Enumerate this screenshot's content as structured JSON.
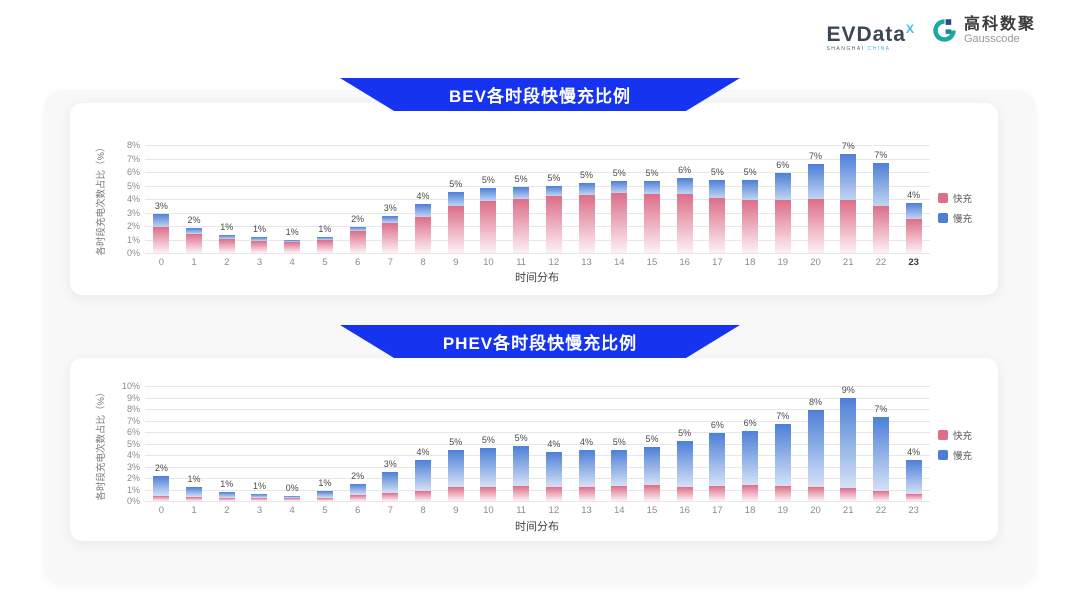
{
  "header": {
    "evdata": {
      "wordmark": "EVData",
      "sup": "X",
      "tagline_dark": "SHANGHAI",
      "tagline_blue": "CHINA"
    },
    "gausscode": {
      "cn": "高科数聚",
      "en": "Gausscode",
      "icon_color": "#1ba8a2",
      "icon_accent": "#2b4a8b"
    }
  },
  "colors": {
    "banner_blue": "#1634f0",
    "fast_pink": "#dc6e89",
    "slow_blue": "#4c80d6"
  },
  "chart_data": [
    {
      "type": "bar",
      "stacked": true,
      "title": "BEV各时段快慢充比例",
      "xlabel": "时间分布",
      "ylabel": "各时段充电次数占比（%）",
      "ylim": [
        0,
        8
      ],
      "ytick_step": 1,
      "ytick_suffix": "%",
      "grid": true,
      "legend_position": "right",
      "highlighted_xtick": "23",
      "categories": [
        "0",
        "1",
        "2",
        "3",
        "4",
        "5",
        "6",
        "7",
        "8",
        "9",
        "10",
        "11",
        "12",
        "13",
        "14",
        "15",
        "16",
        "17",
        "18",
        "19",
        "20",
        "21",
        "22",
        "23"
      ],
      "series": [
        {
          "name": "快充",
          "color": "#dc6e89",
          "fade": "#fdf1f5",
          "values": [
            1.9,
            1.4,
            1.0,
            0.9,
            0.85,
            0.95,
            1.6,
            2.2,
            2.7,
            3.5,
            3.85,
            4.0,
            4.2,
            4.3,
            4.45,
            4.4,
            4.4,
            4.05,
            3.95,
            3.95,
            4.0,
            3.9,
            3.5,
            2.5
          ]
        },
        {
          "name": "慢充",
          "color": "#4c80d6",
          "fade": "#c2d4f2",
          "values": [
            1.0,
            0.45,
            0.3,
            0.25,
            0.1,
            0.2,
            0.3,
            0.55,
            0.9,
            1.0,
            0.95,
            0.9,
            0.8,
            0.9,
            0.85,
            0.9,
            1.15,
            1.35,
            1.45,
            2.0,
            2.6,
            3.4,
            3.2,
            1.2
          ]
        }
      ],
      "total_labels": [
        "3%",
        "2%",
        "1%",
        "1%",
        "1%",
        "1%",
        "2%",
        "3%",
        "4%",
        "5%",
        "5%",
        "5%",
        "5%",
        "5%",
        "5%",
        "5%",
        "6%",
        "5%",
        "5%",
        "6%",
        "7%",
        "7%",
        "7%",
        "4%"
      ]
    },
    {
      "type": "bar",
      "stacked": true,
      "title": "PHEV各时段快慢充比例",
      "xlabel": "时间分布",
      "ylabel": "各时段充电次数占比（%）",
      "ylim": [
        0,
        10
      ],
      "ytick_step": 1,
      "ytick_suffix": "%",
      "grid": true,
      "legend_position": "right",
      "highlighted_xtick": null,
      "categories": [
        "0",
        "1",
        "2",
        "3",
        "4",
        "5",
        "6",
        "7",
        "8",
        "9",
        "10",
        "11",
        "12",
        "13",
        "14",
        "15",
        "16",
        "17",
        "18",
        "19",
        "20",
        "21",
        "22",
        "23"
      ],
      "series": [
        {
          "name": "快充",
          "color": "#dc6e89",
          "fade": "#fdf1f5",
          "values": [
            0.45,
            0.35,
            0.3,
            0.3,
            0.25,
            0.3,
            0.55,
            0.7,
            0.85,
            1.2,
            1.25,
            1.3,
            1.25,
            1.25,
            1.3,
            1.4,
            1.25,
            1.3,
            1.35,
            1.3,
            1.2,
            1.1,
            0.9,
            0.6
          ]
        },
        {
          "name": "慢充",
          "color": "#4c80d6",
          "fade": "#d5e1f6",
          "values": [
            1.75,
            0.85,
            0.5,
            0.3,
            0.2,
            0.55,
            0.95,
            1.85,
            2.75,
            3.2,
            3.35,
            3.5,
            3.0,
            3.15,
            3.15,
            3.3,
            3.95,
            4.6,
            4.75,
            5.4,
            6.75,
            7.85,
            6.4,
            2.95
          ]
        }
      ],
      "total_labels": [
        "2%",
        "1%",
        "1%",
        "1%",
        "0%",
        "1%",
        "2%",
        "3%",
        "4%",
        "5%",
        "5%",
        "5%",
        "4%",
        "4%",
        "5%",
        "5%",
        "5%",
        "6%",
        "6%",
        "7%",
        "8%",
        "9%",
        "7%",
        "4%"
      ]
    }
  ]
}
